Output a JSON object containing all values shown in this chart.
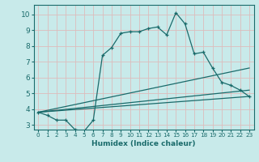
{
  "xlabel": "Humidex (Indice chaleur)",
  "bg_color": "#c8eaea",
  "line_color": "#1a6b6b",
  "grid_color": "#ddbcbc",
  "xlim": [
    -0.5,
    23.5
  ],
  "ylim": [
    2.7,
    10.6
  ],
  "xticks": [
    0,
    1,
    2,
    3,
    4,
    5,
    6,
    7,
    8,
    9,
    10,
    11,
    12,
    13,
    14,
    15,
    16,
    17,
    18,
    19,
    20,
    21,
    22,
    23
  ],
  "yticks": [
    3,
    4,
    5,
    6,
    7,
    8,
    9,
    10
  ],
  "lines": [
    {
      "x": [
        0,
        1,
        2,
        3,
        4,
        5,
        6,
        7,
        8,
        9,
        10,
        11,
        12,
        13,
        14,
        15,
        16,
        17,
        18,
        19,
        20,
        21,
        22,
        23
      ],
      "y": [
        3.8,
        3.6,
        3.3,
        3.3,
        2.7,
        2.6,
        3.3,
        7.4,
        7.9,
        8.8,
        8.9,
        8.9,
        9.1,
        9.2,
        8.7,
        10.1,
        9.4,
        7.5,
        7.6,
        6.6,
        5.7,
        5.5,
        5.2,
        4.8
      ],
      "has_markers": true
    },
    {
      "x": [
        0,
        23
      ],
      "y": [
        3.8,
        6.6
      ],
      "has_markers": false
    },
    {
      "x": [
        0,
        23
      ],
      "y": [
        3.8,
        5.2
      ],
      "has_markers": false
    },
    {
      "x": [
        0,
        23
      ],
      "y": [
        3.8,
        4.8
      ],
      "has_markers": false
    }
  ]
}
